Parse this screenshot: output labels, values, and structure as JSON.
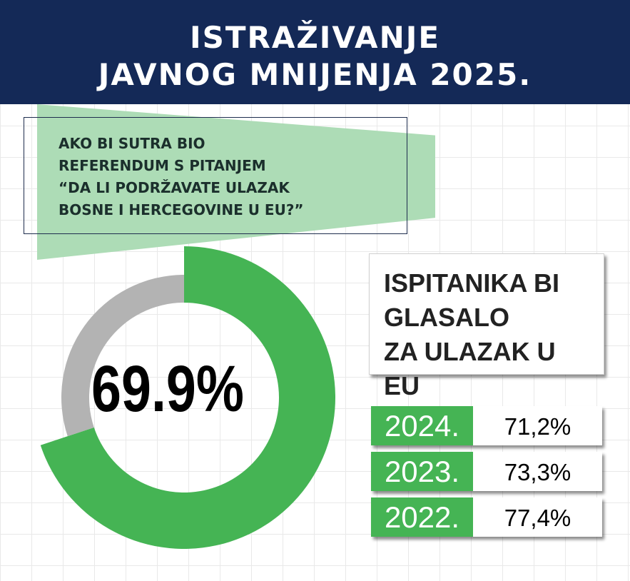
{
  "header": {
    "title_line1": "ISTRAŽIVANJE",
    "title_line2": "JAVNOG MNIJENJA 2025."
  },
  "question": {
    "text": "AKO BI SUTRA BIO\nREFERENDUM S PITANJEM\n“DA LI PODRŽAVATE ULAZAK\nBOSNE I HERCEGOVINE U EU?”"
  },
  "caption": {
    "text": "ISPITANIKA BI\nGLASALO\nZA ULAZAK U EU"
  },
  "colors": {
    "header_bg": "#142957",
    "accent_green": "#45b454",
    "light_green": "#addcb6",
    "donut_gray": "#b3b3b3"
  },
  "chart_data": [
    {
      "type": "pie",
      "subtype": "donut",
      "value_label": "69.9%",
      "slices": [
        {
          "label": "69.9%",
          "value": 69.9,
          "color": "#45b454"
        },
        {
          "label": "",
          "value": 30.1,
          "color": "#b3b3b3"
        }
      ]
    },
    {
      "type": "table",
      "rows": [
        {
          "year": "2024.",
          "value_label": "71,2%",
          "value": 71.2
        },
        {
          "year": "2023.",
          "value_label": "73,3%",
          "value": 73.3
        },
        {
          "year": "2022.",
          "value_label": "77,4%",
          "value": 77.4
        }
      ]
    }
  ]
}
